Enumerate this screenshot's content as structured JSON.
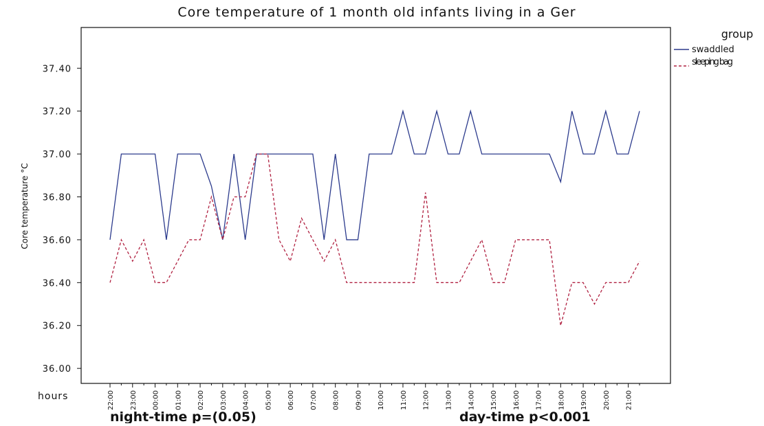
{
  "chart_data": {
    "type": "line",
    "title": "Core temperature of 1 month old infants living in a Ger",
    "y_label": "Core temperature °C",
    "x_label": "hours",
    "annotations": [
      "night-time p=(0.05)",
      "day-time p<0.001"
    ],
    "legend_title": "group",
    "legend": "right",
    "categories": [
      "22:00",
      null,
      "23:00",
      null,
      "00:00",
      null,
      "01:00",
      null,
      "02:00",
      null,
      "03:00",
      null,
      "04:00",
      null,
      "05:00",
      null,
      "06:00",
      null,
      "07:00",
      null,
      "08:00",
      null,
      "09:00",
      null,
      "10:00",
      null,
      "11:00",
      null,
      "12:00",
      null,
      "13:00",
      null,
      "14:00",
      null,
      "15:00",
      null,
      "16:00",
      null,
      "17:00",
      null,
      "18:00",
      null,
      "19:00",
      null,
      "20:00",
      null,
      "21:00",
      null
    ],
    "series": [
      {
        "name": "swaddled",
        "color": "#2b3a8c",
        "dash": false,
        "values": [
          36.6,
          37.0,
          37.0,
          37.0,
          37.0,
          36.6,
          37.0,
          37.0,
          37.0,
          36.85,
          36.6,
          37.0,
          36.6,
          37.0,
          37.0,
          37.0,
          37.0,
          37.0,
          37.0,
          36.6,
          37.0,
          36.6,
          36.6,
          37.0,
          37.0,
          37.0,
          37.2,
          37.0,
          37.0,
          37.2,
          37.0,
          37.0,
          37.2,
          37.0,
          37.0,
          37.0,
          37.0,
          37.0,
          37.0,
          37.0,
          36.87,
          37.2,
          37.0,
          37.0,
          37.2,
          37.0,
          37.0,
          37.2
        ]
      },
      {
        "name": "sleeping bag",
        "color": "#b02040",
        "dash": true,
        "values": [
          36.4,
          36.6,
          36.5,
          36.6,
          36.4,
          36.4,
          36.5,
          36.6,
          36.6,
          36.8,
          36.6,
          36.8,
          36.8,
          37.0,
          37.0,
          36.6,
          36.5,
          36.7,
          36.6,
          36.5,
          36.6,
          36.4,
          36.4,
          36.4,
          36.4,
          36.4,
          36.4,
          36.4,
          36.82,
          36.4,
          36.4,
          36.4,
          36.5,
          36.6,
          36.4,
          36.4,
          36.6,
          36.6,
          36.6,
          36.6,
          36.2,
          36.4,
          36.4,
          36.3,
          36.4,
          36.4,
          36.4,
          36.5
        ]
      }
    ],
    "ylim": [
      35.93,
      37.59
    ],
    "yticks": [
      {
        "value": 36,
        "label": "36.00"
      },
      {
        "value": 36.2,
        "label": "36.20"
      },
      {
        "value": 36.4,
        "label": "36.40"
      },
      {
        "value": 36.6,
        "label": "36.60"
      },
      {
        "value": 36.8,
        "label": "36.80"
      },
      {
        "value": 37,
        "label": "37.00"
      },
      {
        "value": 37.2,
        "label": "37.20"
      },
      {
        "value": 37.4,
        "label": "37.40"
      }
    ],
    "grid": false
  }
}
